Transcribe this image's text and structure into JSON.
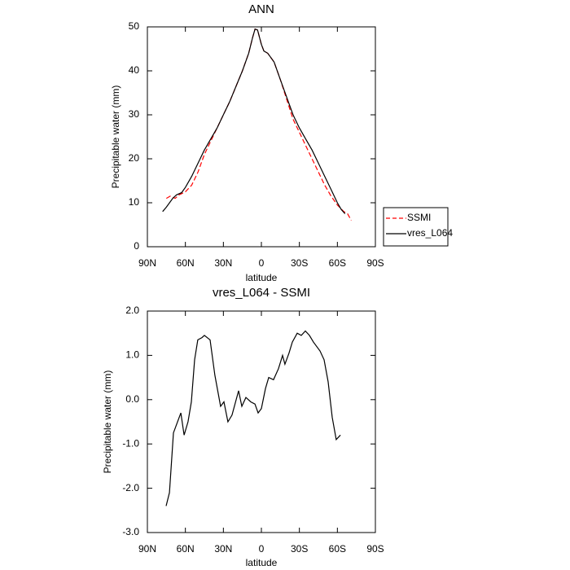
{
  "chart_data": [
    {
      "type": "line",
      "title": "ANN",
      "xlabel": "latitude",
      "ylabel": "Precipitable water (mm)",
      "xlim": [
        90,
        -90
      ],
      "xticks": [
        {
          "value": 90,
          "label": "90N"
        },
        {
          "value": 60,
          "label": "60N"
        },
        {
          "value": 30,
          "label": "30N"
        },
        0,
        {
          "value": -30,
          "label": "30S"
        },
        {
          "value": -60,
          "label": "60S"
        },
        {
          "value": -90,
          "label": "90S"
        }
      ],
      "ylim": [
        0,
        50
      ],
      "yticks": [
        0,
        10,
        20,
        30,
        40,
        50
      ],
      "legend": "right",
      "series": [
        {
          "name": "SSMI",
          "color": "#ff0000",
          "dashed": true,
          "x": [
            75,
            72,
            68,
            65,
            60,
            55,
            50,
            45,
            40,
            35,
            30,
            25,
            20,
            15,
            10,
            7,
            5,
            3,
            0,
            -2,
            -5,
            -10,
            -15,
            -20,
            -25,
            -30,
            -35,
            -40,
            -45,
            -50,
            -55,
            -60,
            -65,
            -68,
            -71
          ],
          "values": [
            11,
            11.5,
            11,
            11.8,
            12.5,
            14,
            17,
            21,
            24,
            27,
            30,
            33,
            36.5,
            40,
            44,
            47.5,
            49.5,
            49.3,
            46,
            44.5,
            44,
            42,
            38,
            33.5,
            29,
            26,
            23,
            20,
            17,
            14,
            11.5,
            9.5,
            8,
            7.5,
            6
          ]
        },
        {
          "name": "vres_L064",
          "color": "#000000",
          "dashed": false,
          "x": [
            78,
            75,
            70,
            67,
            63,
            60,
            55,
            50,
            45,
            40,
            35,
            30,
            25,
            20,
            15,
            10,
            7,
            5,
            3,
            0,
            -2,
            -5,
            -10,
            -15,
            -20,
            -25,
            -30,
            -35,
            -40,
            -45,
            -50,
            -55,
            -60,
            -63,
            -66
          ],
          "values": [
            8,
            9,
            11,
            11.8,
            12.3,
            13.5,
            16,
            19,
            22,
            24.5,
            27,
            30,
            33,
            36.5,
            40,
            44,
            47.5,
            49.5,
            49.3,
            46,
            44.5,
            44,
            42,
            38,
            34,
            30,
            27,
            24.5,
            22,
            19,
            16,
            13,
            10,
            8.5,
            7.5
          ]
        }
      ]
    },
    {
      "type": "line",
      "title": "vres_L064 - SSMI",
      "xlabel": "latitude",
      "ylabel": "Precipitable water (mm)",
      "xlim": [
        90,
        -90
      ],
      "xticks": [
        {
          "value": 90,
          "label": "90N"
        },
        {
          "value": 60,
          "label": "60N"
        },
        {
          "value": 30,
          "label": "30N"
        },
        0,
        {
          "value": -30,
          "label": "30S"
        },
        {
          "value": -60,
          "label": "60S"
        },
        {
          "value": -90,
          "label": "90S"
        }
      ],
      "ylim": [
        -3,
        2
      ],
      "yticks": [
        {
          "value": 2,
          "label": "2.0"
        },
        {
          "value": 1,
          "label": "1.0"
        },
        {
          "value": 0,
          "label": "0.0"
        },
        {
          "value": -1,
          "label": "-1.0"
        },
        {
          "value": -2,
          "label": "-2.0"
        },
        {
          "value": -3,
          "label": "-3.0"
        }
      ],
      "series": [
        {
          "color": "#000000",
          "dashed": false,
          "x": [
            75.2,
            72.6,
            69.4,
            63.6,
            61,
            57.9,
            55.3,
            52.7,
            50.2,
            46.9,
            45,
            40.5,
            36.7,
            32.2,
            29.6,
            26.4,
            23.2,
            18,
            15.4,
            12.2,
            8.4,
            5.1,
            2.6,
            0,
            -3.2,
            -5.8,
            -9.6,
            -13.5,
            -16.7,
            -18.6,
            -21.8,
            -24.4,
            -28.3,
            -31.5,
            -34.7,
            -37.9,
            -41.1,
            -46.3,
            -49.5,
            -52.7,
            -55.9,
            -59.1,
            -62.4
          ],
          "values": [
            -2.4,
            -2.1,
            -0.75,
            -0.3,
            -0.8,
            -0.5,
            -0.05,
            0.9,
            1.35,
            1.4,
            1.45,
            1.35,
            0.55,
            -0.15,
            -0.05,
            -0.5,
            -0.35,
            0.2,
            -0.15,
            0.05,
            -0.05,
            -0.1,
            -0.3,
            -0.2,
            0.25,
            0.5,
            0.45,
            0.7,
            1.0,
            0.8,
            1.05,
            1.3,
            1.5,
            1.45,
            1.55,
            1.45,
            1.3,
            1.1,
            0.9,
            0.4,
            -0.4,
            -0.9,
            -0.8
          ]
        }
      ]
    }
  ]
}
